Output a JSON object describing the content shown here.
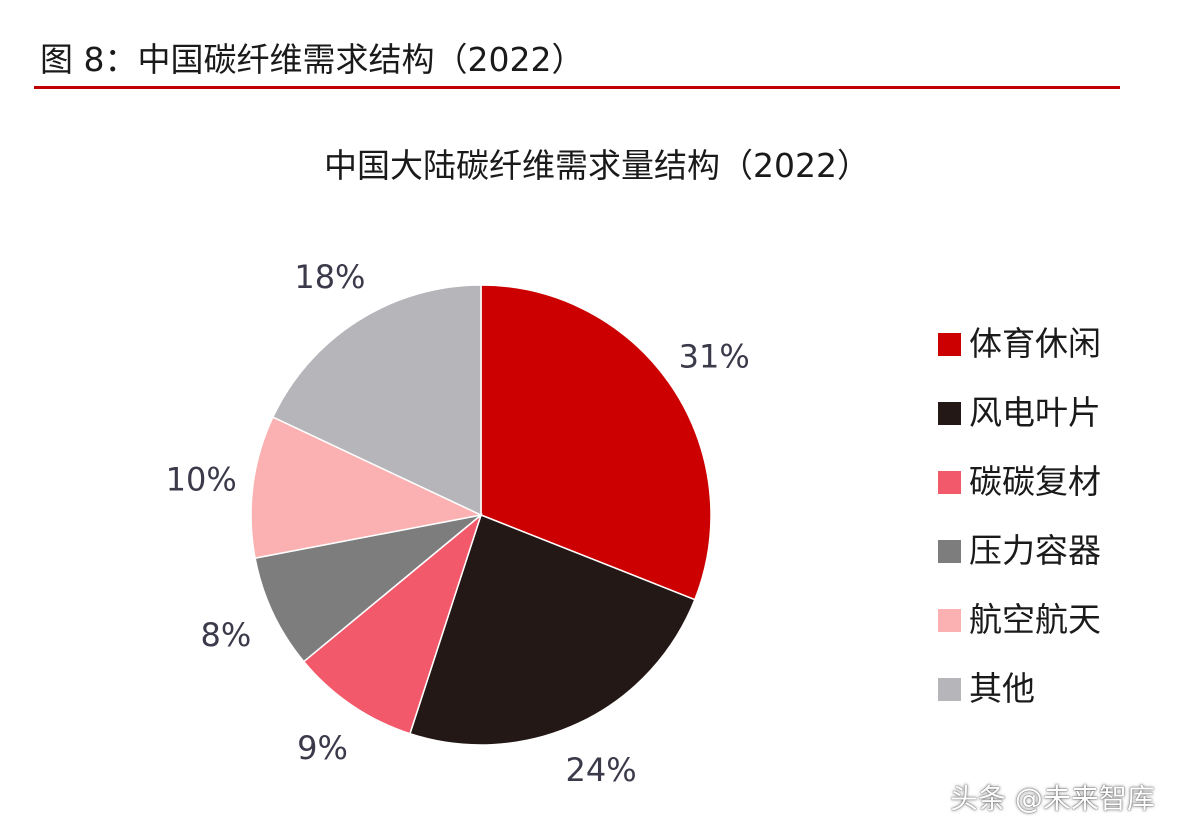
{
  "header": {
    "figure_title": "图 8：中国碳纤维需求结构（2022）"
  },
  "watermark": "头条 @未来智库",
  "chart_data": {
    "type": "pie",
    "title": "中国大陆碳纤维需求量结构（2022）",
    "legend_position": "right",
    "slices": [
      {
        "label": "体育休闲",
        "value": 31,
        "display": "31%",
        "color": "#cc0000"
      },
      {
        "label": "风电叶片",
        "value": 24,
        "display": "24%",
        "color": "#231815"
      },
      {
        "label": "碳碳复材",
        "value": 9,
        "display": "9%",
        "color": "#f2596b"
      },
      {
        "label": "压力容器",
        "value": 8,
        "display": "8%",
        "color": "#7d7d7d"
      },
      {
        "label": "航空航天",
        "value": 10,
        "display": "10%",
        "color": "#fbb1b1"
      },
      {
        "label": "其他",
        "value": 18,
        "display": "18%",
        "color": "#b5b5ba"
      }
    ]
  }
}
